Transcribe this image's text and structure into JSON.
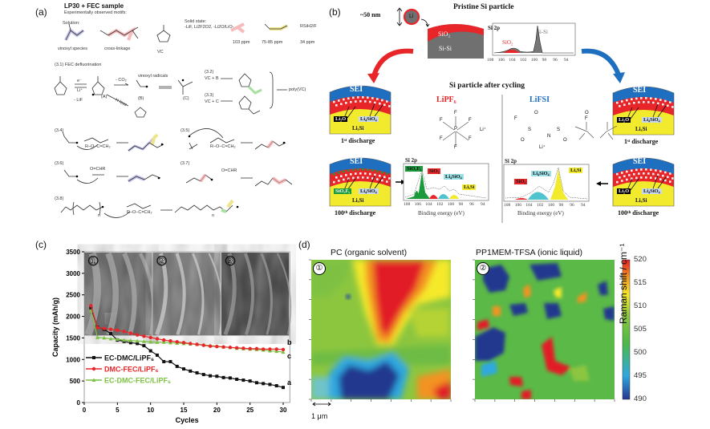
{
  "panel_a": {
    "label": "(a)",
    "title": "LP30 + FEC sample",
    "subtitle": "Experimentally observed motifs:",
    "solution_label": "Solution:",
    "motifs": [
      "vinoxyl species",
      "cross-linkage",
      "VC"
    ],
    "solid_state_label": "Solid state:",
    "solid_state_species": "-LiF, Li2F2O2, -Li2O/LiO-",
    "ppm_labels": [
      "103 ppm",
      "75-85 ppm",
      "34 ppm"
    ],
    "silane_label": "RSiH2/F",
    "reactions": {
      "r31": "(3.1) FEC defluorination",
      "electron": "e⁻",
      "li": "Li⁺",
      "co2": "- CO₂",
      "lif": "- LiF",
      "vinoxyl": "vinoxyl radicals",
      "h_loss": "H loss",
      "A": "(A)",
      "B": "(B)",
      "C": "(C)",
      "r32": "(3.2)",
      "r32_eq": "VC + B",
      "r33": "(3.3)",
      "r33_eq": "VC + C",
      "polymer": "poly(VC)",
      "r34": "(3.4)",
      "r35": "(3.5)",
      "r36": "(3.6)",
      "r37": "(3.7)",
      "r38": "(3.8)",
      "vinyl_ether": "R–O–C=CH₂",
      "carbonyl": "O=CHR",
      "n": "n"
    }
  },
  "panel_b": {
    "label": "(b)",
    "pristine_title": "Pristine Si particle",
    "size": "~50 nm",
    "li": "Li",
    "shell": "SiO₂",
    "core": "Si-Si",
    "xps_top": {
      "title": "Si 2p",
      "peak1": "SiO₂",
      "peak2": "Si-Si",
      "ticks": [
        "108",
        "106",
        "104",
        "102",
        "100",
        "98",
        "96",
        "94"
      ]
    },
    "cycling_title": "Si particle after cycling",
    "lipf6": {
      "label": "LiPF₆",
      "atoms": [
        "F",
        "F",
        "F",
        "P",
        "F",
        "F",
        "F"
      ],
      "cation": "Li⁺"
    },
    "lifsi": {
      "label": "LiFSI",
      "atoms": [
        "F",
        "S",
        "O",
        "O",
        "N",
        "S",
        "O",
        "O",
        "F"
      ],
      "cation": "Li⁺"
    },
    "sei": "SEI",
    "lixsi": "LiₓSi",
    "li2o": "Li₂O",
    "li4sio4": "Li₄SiO₄",
    "sioxfy": "SiOₓFᵧ",
    "first_discharge": "1ˢᵗ discharge",
    "hundredth_discharge": "100ᵗʰ discharge",
    "xps_left": {
      "title": "Si 2p",
      "labels": [
        "SiOₓFᵧ",
        "SiO₂",
        "Li₄SiO₄",
        "LiₓSi"
      ],
      "ticks": [
        "108",
        "106",
        "104",
        "102",
        "100",
        "98",
        "96",
        "94"
      ],
      "xlabel": "Binding energy (eV)"
    },
    "xps_right": {
      "title": "Si 2p",
      "labels": [
        "SiO₂",
        "Li₄SiO₄",
        "LiₓSi"
      ],
      "ticks": [
        "108",
        "106",
        "104",
        "102",
        "100",
        "98",
        "96",
        "94"
      ],
      "xlabel": "Binding energy (eV)"
    },
    "colors": {
      "red": "#e8262a",
      "blue": "#1f6fc0",
      "yellow": "#f2ea2c",
      "gray": "#707070",
      "green": "#1a9a3a"
    }
  },
  "chart_data": {
    "type": "line",
    "label": "(c)",
    "title": "",
    "xlabel": "Cycles",
    "ylabel": "Capacity (mAh/g)",
    "xlim": [
      0,
      31
    ],
    "ylim": [
      0,
      3500
    ],
    "xticks": [
      "0",
      "5",
      "10",
      "15",
      "20",
      "25",
      "30"
    ],
    "yticks": [
      "0",
      "500",
      "1000",
      "1500",
      "2000",
      "2500",
      "3000",
      "3500"
    ],
    "legend_position": "bottom-left",
    "inset_labels": [
      "①",
      "②",
      "③"
    ],
    "x": [
      1,
      2,
      3,
      4,
      5,
      6,
      7,
      8,
      9,
      10,
      11,
      12,
      13,
      14,
      15,
      16,
      17,
      18,
      19,
      20,
      21,
      22,
      23,
      24,
      25,
      26,
      27,
      28,
      29,
      30
    ],
    "series": [
      {
        "name": "EC-DMC/LiPF₆",
        "end_label": "a",
        "color": "#111111",
        "marker": "square",
        "values": [
          2200,
          1750,
          1700,
          1600,
          1450,
          1420,
          1390,
          1370,
          1320,
          1200,
          1100,
          950,
          950,
          840,
          780,
          730,
          690,
          650,
          620,
          610,
          580,
          570,
          540,
          520,
          500,
          460,
          440,
          420,
          390,
          350
        ]
      },
      {
        "name": "DMC-FEC/LiPF₆",
        "end_label": "b",
        "color": "#e8262a",
        "marker": "circle",
        "values": [
          2250,
          1740,
          1720,
          1700,
          1680,
          1650,
          1610,
          1570,
          1540,
          1510,
          1480,
          1450,
          1430,
          1410,
          1390,
          1370,
          1350,
          1330,
          1310,
          1300,
          1290,
          1280,
          1270,
          1260,
          1250,
          1250,
          1240,
          1240,
          1240,
          1230
        ]
      },
      {
        "name": "EC-DMC-FEC/LiPF₆",
        "end_label": "c",
        "color": "#7cc242",
        "marker": "triangle",
        "values": [
          2130,
          1510,
          1500,
          1480,
          1470,
          1450,
          1440,
          1430,
          1420,
          1410,
          1400,
          1400,
          1390,
          1380,
          1370,
          1360,
          1350,
          1340,
          1320,
          1310,
          1290,
          1280,
          1260,
          1250,
          1240,
          1230,
          1220,
          1200,
          1190,
          1170
        ]
      }
    ]
  },
  "panel_d": {
    "label": "(d)",
    "map1_title": "PC (organic solvent)",
    "map2_title": "PP1MEM-TFSA (ionic liquid)",
    "map1_badge": "①",
    "map2_badge": "②",
    "scale_bar": "1 μm",
    "colorbar_label": "Raman shift / cm⁻¹",
    "colorbar_ticks": [
      "520",
      "515",
      "510",
      "505",
      "500",
      "495",
      "490"
    ],
    "colorbar_range": [
      490,
      520
    ]
  }
}
